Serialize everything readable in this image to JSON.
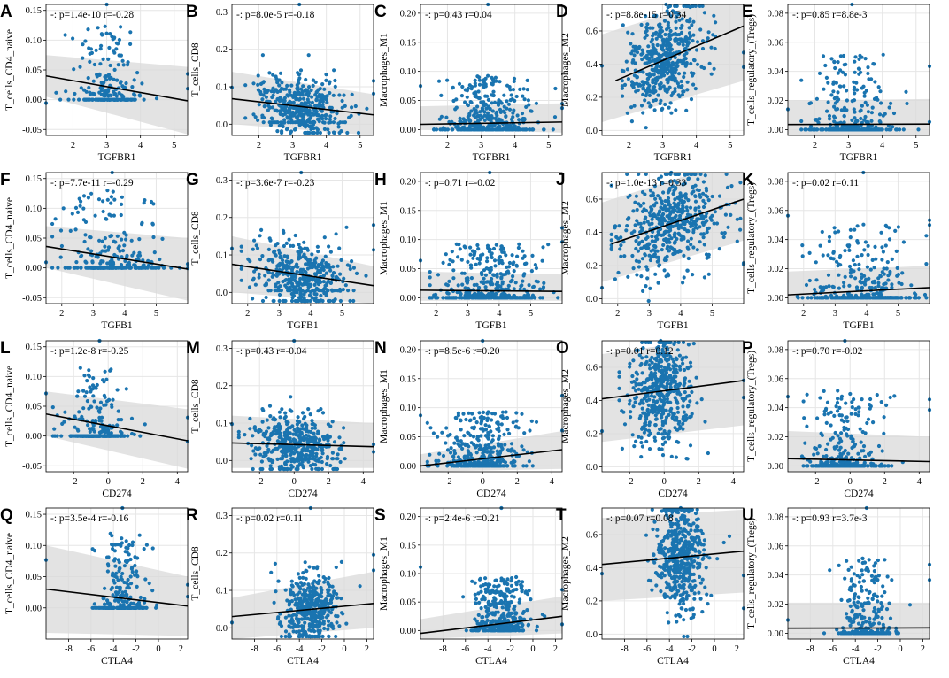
{
  "figure": {
    "title": "",
    "colors": {
      "point": "#1f77b4",
      "point_fill": "#1a74b0",
      "line": "#000000",
      "band": "#d9d9d9",
      "grid": "#e6e6e6"
    },
    "rows": [
      "TGFBR1",
      "TGFB1",
      "CD274",
      "CTLA4"
    ],
    "columns": [
      "T_cells_CD4_naive",
      "T_cells_CD8",
      "Macrophages_M1",
      "Macrophages_M2",
      "T_cells_regulatory_(Tregs)"
    ]
  },
  "chart_data": [
    {
      "panel": "A",
      "type": "scatter",
      "xlabel": "TGFBR1",
      "ylabel": "T_cells_CD4_naive",
      "stat": "-: p=1.4e-10 r=-0.28",
      "xticks": [
        "2",
        "3",
        "4",
        "5"
      ],
      "yticks": [
        "-0.05",
        "0.00",
        "0.05",
        "0.10",
        "0.15"
      ],
      "xlim": [
        1.2,
        5.4
      ],
      "ylim": [
        -0.06,
        0.16
      ],
      "fit": {
        "x": [
          1.2,
          5.4
        ],
        "y": [
          0.04,
          -0.002
        ]
      },
      "band": {
        "at_start": [
          0.005,
          0.075
        ],
        "at_end": [
          -0.058,
          0.055
        ]
      },
      "cloud": {
        "center": 3.0,
        "spread": 0.45,
        "range": [
          1.5,
          4.7
        ],
        "n": 230,
        "base": 0.0,
        "top": 0.13,
        "zero_frac": 0.5
      }
    },
    {
      "panel": "B",
      "type": "scatter",
      "xlabel": "TGFBR1",
      "ylabel": "T_cells_CD8",
      "stat": "-: p=8.0e-5 r=-0.18",
      "xticks": [
        "2",
        "3",
        "4",
        "5"
      ],
      "yticks": [
        "0.0",
        "0.1",
        "0.2",
        "0.3"
      ],
      "xlim": [
        1.2,
        5.4
      ],
      "ylim": [
        -0.03,
        0.32
      ],
      "fit": {
        "x": [
          1.2,
          5.4
        ],
        "y": [
          0.068,
          0.025
        ]
      },
      "band": {
        "at_start": [
          0.0,
          0.14
        ],
        "at_end": [
          -0.03,
          0.08
        ]
      },
      "cloud": {
        "center": 3.2,
        "spread": 0.65,
        "range": [
          1.6,
          5.2
        ],
        "n": 420,
        "base": 0.005,
        "top": 0.2,
        "zero_frac": 0.08
      }
    },
    {
      "panel": "C",
      "type": "scatter",
      "xlabel": "TGFBR1",
      "ylabel": "Macrophages_M1",
      "stat": "-: p=0.43 r=0.04",
      "xticks": [
        "2",
        "3",
        "4",
        "5"
      ],
      "yticks": [
        "0.00",
        "0.05",
        "0.10",
        "0.15",
        "0.20"
      ],
      "xlim": [
        1.2,
        5.4
      ],
      "ylim": [
        -0.01,
        0.215
      ],
      "fit": {
        "x": [
          1.2,
          5.4
        ],
        "y": [
          0.009,
          0.013
        ]
      },
      "band": {
        "at_start": [
          0.0,
          0.04
        ],
        "at_end": [
          -0.005,
          0.045
        ]
      },
      "cloud": {
        "center": 3.2,
        "spread": 0.65,
        "range": [
          1.6,
          5.2
        ],
        "n": 380,
        "base": 0.0,
        "top": 0.1,
        "zero_frac": 0.35
      }
    },
    {
      "panel": "D",
      "type": "scatter",
      "xlabel": "TGFBR1",
      "ylabel": "Macrophages_M2",
      "stat": "-: p=8.8e-15 r=0.34",
      "xticks": [
        "2",
        "3",
        "4",
        "5"
      ],
      "yticks": [
        "0.0",
        "0.2",
        "0.4",
        "0.6"
      ],
      "xlim": [
        1.2,
        5.4
      ],
      "ylim": [
        -0.03,
        0.76
      ],
      "fit": {
        "x": [
          1.6,
          5.4
        ],
        "y": [
          0.3,
          0.63
        ]
      },
      "band": {
        "at_start": [
          0.05,
          0.58
        ],
        "at_end": [
          0.3,
          0.85
        ]
      },
      "cloud": {
        "center": 3.1,
        "spread": 0.55,
        "range": [
          1.8,
          4.8
        ],
        "n": 480,
        "base": 0.05,
        "top": 0.75,
        "zero_frac": 0.0
      }
    },
    {
      "panel": "E",
      "type": "scatter",
      "xlabel": "TGFBR1",
      "ylabel": "T_cells_regulatory_(Tregs)",
      "stat": "-: p=0.85 r=8.8e-3",
      "xticks": [
        "2",
        "3",
        "4",
        "5"
      ],
      "yticks": [
        "0.00",
        "0.02",
        "0.04",
        "0.06",
        "0.08"
      ],
      "xlim": [
        1.2,
        5.4
      ],
      "ylim": [
        -0.004,
        0.086
      ],
      "fit": {
        "x": [
          1.2,
          5.4
        ],
        "y": [
          0.0035,
          0.0038
        ]
      },
      "band": {
        "at_start": [
          -0.004,
          0.02
        ],
        "at_end": [
          -0.004,
          0.021
        ]
      },
      "cloud": {
        "center": 3.1,
        "spread": 0.6,
        "range": [
          1.6,
          5.1
        ],
        "n": 330,
        "base": 0.0,
        "top": 0.056,
        "zero_frac": 0.45
      }
    },
    {
      "panel": "F",
      "type": "scatter",
      "xlabel": "TGFB1",
      "ylabel": "T_cells_CD4_naive",
      "stat": "-: p=7.7e-11 r=-0.29",
      "xticks": [
        "2",
        "3",
        "4",
        "5"
      ],
      "yticks": [
        "-0.05",
        "0.00",
        "0.05",
        "0.10",
        "0.15"
      ],
      "xlim": [
        1.5,
        6.0
      ],
      "ylim": [
        -0.06,
        0.16
      ],
      "fit": {
        "x": [
          1.5,
          6.0
        ],
        "y": [
          0.036,
          -0.002
        ]
      },
      "band": {
        "at_start": [
          0.0,
          0.07
        ],
        "at_end": [
          -0.055,
          0.05
        ]
      },
      "cloud": {
        "center": 3.6,
        "spread": 0.8,
        "range": [
          1.7,
          5.9
        ],
        "n": 250,
        "base": 0.0,
        "top": 0.14,
        "zero_frac": 0.45
      }
    },
    {
      "panel": "G",
      "type": "scatter",
      "xlabel": "TGFB1",
      "ylabel": "T_cells_CD8",
      "stat": "-: p=3.6e-7 r=-0.23",
      "xticks": [
        "2",
        "3",
        "4",
        "5"
      ],
      "yticks": [
        "0.0",
        "0.1",
        "0.2",
        "0.3"
      ],
      "xlim": [
        1.5,
        6.0
      ],
      "ylim": [
        -0.03,
        0.32
      ],
      "fit": {
        "x": [
          1.5,
          6.0
        ],
        "y": [
          0.075,
          0.018
        ]
      },
      "band": {
        "at_start": [
          0.0,
          0.15
        ],
        "at_end": [
          -0.03,
          0.07
        ]
      },
      "cloud": {
        "center": 3.7,
        "spread": 0.8,
        "range": [
          1.8,
          5.9
        ],
        "n": 420,
        "base": 0.005,
        "top": 0.22,
        "zero_frac": 0.06
      }
    },
    {
      "panel": "H",
      "type": "scatter",
      "xlabel": "TGFB1",
      "ylabel": "Macrophages_M1",
      "stat": "-: p=0.71 r=-0.02",
      "xticks": [
        "2",
        "3",
        "4",
        "5"
      ],
      "yticks": [
        "0.00",
        "0.05",
        "0.10",
        "0.15",
        "0.20"
      ],
      "xlim": [
        1.5,
        6.0
      ],
      "ylim": [
        -0.01,
        0.215
      ],
      "fit": {
        "x": [
          1.5,
          6.0
        ],
        "y": [
          0.013,
          0.011
        ]
      },
      "band": {
        "at_start": [
          -0.005,
          0.045
        ],
        "at_end": [
          -0.005,
          0.04
        ]
      },
      "cloud": {
        "center": 3.7,
        "spread": 0.8,
        "range": [
          1.8,
          5.9
        ],
        "n": 380,
        "base": 0.0,
        "top": 0.1,
        "zero_frac": 0.35
      }
    },
    {
      "panel": "J",
      "type": "scatter",
      "xlabel": "TGFB1",
      "ylabel": "Macrophages_M2",
      "stat": "-: p=1.0e-13 r=0.33",
      "xticks": [
        "2",
        "3",
        "4",
        "5"
      ],
      "yticks": [
        "0.0",
        "0.2",
        "0.4",
        "0.6"
      ],
      "xlim": [
        1.5,
        6.0
      ],
      "ylim": [
        -0.03,
        0.76
      ],
      "fit": {
        "x": [
          1.8,
          6.0
        ],
        "y": [
          0.33,
          0.6
        ]
      },
      "band": {
        "at_start": [
          0.1,
          0.58
        ],
        "at_end": [
          0.35,
          0.85
        ]
      },
      "cloud": {
        "center": 3.7,
        "spread": 0.8,
        "range": [
          1.8,
          5.9
        ],
        "n": 480,
        "base": 0.05,
        "top": 0.75,
        "zero_frac": 0.0
      }
    },
    {
      "panel": "K",
      "type": "scatter",
      "xlabel": "TGFB1",
      "ylabel": "T_cells_regulatory_(Tregs)",
      "stat": "-: p=0.02 r=0.11",
      "xticks": [
        "2",
        "3",
        "4",
        "5"
      ],
      "yticks": [
        "0.00",
        "0.02",
        "0.04",
        "0.06",
        "0.08"
      ],
      "xlim": [
        1.5,
        6.0
      ],
      "ylim": [
        -0.004,
        0.086
      ],
      "fit": {
        "x": [
          1.5,
          6.0
        ],
        "y": [
          0.002,
          0.007
        ]
      },
      "band": {
        "at_start": [
          -0.004,
          0.018
        ],
        "at_end": [
          -0.004,
          0.022
        ]
      },
      "cloud": {
        "center": 3.9,
        "spread": 0.8,
        "range": [
          1.8,
          5.9
        ],
        "n": 330,
        "base": 0.0,
        "top": 0.055,
        "zero_frac": 0.45
      }
    },
    {
      "panel": "L",
      "type": "scatter",
      "xlabel": "CD274",
      "ylabel": "T_cells_CD4_naive",
      "stat": "-: p=1.2e-8 r=-0.25",
      "xticks": [
        "-2",
        "0",
        "2",
        "4"
      ],
      "yticks": [
        "-0.05",
        "0.00",
        "0.05",
        "0.10",
        "0.15"
      ],
      "xlim": [
        -3.6,
        4.6
      ],
      "ylim": [
        -0.06,
        0.16
      ],
      "fit": {
        "x": [
          -3.6,
          4.6
        ],
        "y": [
          0.037,
          -0.008
        ]
      },
      "band": {
        "at_start": [
          0.0,
          0.075
        ],
        "at_end": [
          -0.055,
          0.045
        ]
      },
      "cloud": {
        "center": -0.5,
        "spread": 0.9,
        "range": [
          -3.2,
          4.4
        ],
        "n": 250,
        "base": 0.0,
        "top": 0.12,
        "zero_frac": 0.5
      }
    },
    {
      "panel": "M",
      "type": "scatter",
      "xlabel": "CD274",
      "ylabel": "T_cells_CD8",
      "stat": "-: p=0.43 r=-0.04",
      "xticks": [
        "-2",
        "0",
        "2",
        "4"
      ],
      "yticks": [
        "0.0",
        "0.1",
        "0.2",
        "0.3"
      ],
      "xlim": [
        -3.6,
        4.6
      ],
      "ylim": [
        -0.03,
        0.32
      ],
      "fit": {
        "x": [
          -3.6,
          4.6
        ],
        "y": [
          0.047,
          0.037
        ]
      },
      "band": {
        "at_start": [
          -0.02,
          0.12
        ],
        "at_end": [
          -0.02,
          0.1
        ]
      },
      "cloud": {
        "center": 0.0,
        "spread": 1.3,
        "range": [
          -3.2,
          4.4
        ],
        "n": 420,
        "base": 0.005,
        "top": 0.2,
        "zero_frac": 0.06
      }
    },
    {
      "panel": "N",
      "type": "scatter",
      "xlabel": "CD274",
      "ylabel": "Macrophages_M1",
      "stat": "-: p=8.5e-6 r=0.20",
      "xticks": [
        "-2",
        "0",
        "2",
        "4"
      ],
      "yticks": [
        "0.00",
        "0.05",
        "0.10",
        "0.15",
        "0.20"
      ],
      "xlim": [
        -3.6,
        4.6
      ],
      "ylim": [
        -0.01,
        0.215
      ],
      "fit": {
        "x": [
          -3.6,
          4.6
        ],
        "y": [
          0.0,
          0.028
        ]
      },
      "band": {
        "at_start": [
          -0.01,
          0.02
        ],
        "at_end": [
          -0.005,
          0.06
        ]
      },
      "cloud": {
        "center": 0.0,
        "spread": 1.3,
        "range": [
          -3.2,
          4.4
        ],
        "n": 380,
        "base": 0.0,
        "top": 0.1,
        "zero_frac": 0.3
      }
    },
    {
      "panel": "O",
      "type": "scatter",
      "xlabel": "CD274",
      "ylabel": "Macrophages_M2",
      "stat": "-: p=0.01 r=0.12",
      "xticks": [
        "-2",
        "0",
        "2",
        "4"
      ],
      "yticks": [
        "0.0",
        "0.2",
        "0.4",
        "0.6"
      ],
      "xlim": [
        -3.6,
        4.6
      ],
      "ylim": [
        -0.03,
        0.76
      ],
      "fit": {
        "x": [
          -3.6,
          4.6
        ],
        "y": [
          0.41,
          0.52
        ]
      },
      "band": {
        "at_start": [
          0.15,
          0.68
        ],
        "at_end": [
          0.25,
          0.8
        ]
      },
      "cloud": {
        "center": -0.2,
        "spread": 0.9,
        "range": [
          -2.6,
          4.2
        ],
        "n": 480,
        "base": 0.0,
        "top": 0.75,
        "zero_frac": 0.0
      }
    },
    {
      "panel": "P",
      "type": "scatter",
      "xlabel": "CD274",
      "ylabel": "T_cells_regulatory_(Tregs)",
      "stat": "-: p=0.70 r=-0.02",
      "xticks": [
        "-2",
        "0",
        "2",
        "4"
      ],
      "yticks": [
        "0.00",
        "0.02",
        "0.04",
        "0.06",
        "0.08"
      ],
      "xlim": [
        -3.6,
        4.6
      ],
      "ylim": [
        -0.004,
        0.086
      ],
      "fit": {
        "x": [
          -3.6,
          4.6
        ],
        "y": [
          0.005,
          0.003
        ]
      },
      "band": {
        "at_start": [
          -0.004,
          0.024
        ],
        "at_end": [
          -0.004,
          0.02
        ]
      },
      "cloud": {
        "center": -0.3,
        "spread": 1.1,
        "range": [
          -3.2,
          4.4
        ],
        "n": 330,
        "base": 0.0,
        "top": 0.056,
        "zero_frac": 0.45
      }
    },
    {
      "panel": "Q",
      "type": "scatter",
      "xlabel": "CTLA4",
      "ylabel": "T_cells_CD4_naive",
      "stat": "-: p=3.5e-4 r=-0.16",
      "xticks": [
        "-8",
        "-6",
        "-4",
        "-2",
        "0",
        "2"
      ],
      "yticks": [
        "0.00",
        "0.05",
        "0.10",
        "0.15"
      ],
      "xlim": [
        -10,
        2.6
      ],
      "ylim": [
        -0.05,
        0.16
      ],
      "fit": {
        "x": [
          -10,
          2.6
        ],
        "y": [
          0.03,
          0.003
        ]
      },
      "band": {
        "at_start": [
          -0.04,
          0.1
        ],
        "at_end": [
          -0.045,
          0.05
        ]
      },
      "cloud": {
        "center": -3.2,
        "spread": 1.1,
        "range": [
          -9.5,
          2.3
        ],
        "n": 250,
        "base": 0.0,
        "top": 0.13,
        "zero_frac": 0.45
      }
    },
    {
      "panel": "R",
      "type": "scatter",
      "xlabel": "CTLA4",
      "ylabel": "T_cells_CD8",
      "stat": "-: p=0.02 r=0.11",
      "xticks": [
        "-8",
        "-6",
        "-4",
        "-2",
        "0",
        "2"
      ],
      "yticks": [
        "0.0",
        "0.1",
        "0.2",
        "0.3"
      ],
      "xlim": [
        -10,
        2.6
      ],
      "ylim": [
        -0.03,
        0.32
      ],
      "fit": {
        "x": [
          -10,
          2.6
        ],
        "y": [
          0.03,
          0.065
        ]
      },
      "band": {
        "at_start": [
          -0.03,
          0.08
        ],
        "at_end": [
          0.0,
          0.15
        ]
      },
      "cloud": {
        "center": -3.0,
        "spread": 1.2,
        "range": [
          -9.5,
          2.3
        ],
        "n": 420,
        "base": 0.005,
        "top": 0.23,
        "zero_frac": 0.05
      }
    },
    {
      "panel": "S",
      "type": "scatter",
      "xlabel": "CTLA4",
      "ylabel": "Macrophages_M1",
      "stat": "-: p=2.4e-6 r=0.21",
      "xticks": [
        "-8",
        "-6",
        "-4",
        "-2",
        "0",
        "2"
      ],
      "yticks": [
        "0.00",
        "0.05",
        "0.10",
        "0.15",
        "0.20"
      ],
      "xlim": [
        -10,
        2.6
      ],
      "ylim": [
        -0.015,
        0.215
      ],
      "fit": {
        "x": [
          -10,
          2.6
        ],
        "y": [
          -0.005,
          0.025
        ]
      },
      "band": {
        "at_start": [
          -0.015,
          0.02
        ],
        "at_end": [
          -0.005,
          0.06
        ]
      },
      "cloud": {
        "center": -2.8,
        "spread": 1.2,
        "range": [
          -8.5,
          2.3
        ],
        "n": 380,
        "base": 0.0,
        "top": 0.1,
        "zero_frac": 0.25
      }
    },
    {
      "panel": "T",
      "type": "scatter",
      "xlabel": "CTLA4",
      "ylabel": "Macrophages_M2",
      "stat": "-: p=0.07 r=0.08",
      "xticks": [
        "-8",
        "-6",
        "-4",
        "-2",
        "0",
        "2"
      ],
      "yticks": [
        "0.0",
        "0.2",
        "0.4",
        "0.6"
      ],
      "xlim": [
        -10,
        2.6
      ],
      "ylim": [
        -0.03,
        0.76
      ],
      "fit": {
        "x": [
          -10,
          2.6
        ],
        "y": [
          0.42,
          0.5
        ]
      },
      "band": {
        "at_start": [
          0.2,
          0.7
        ],
        "at_end": [
          0.25,
          0.75
        ]
      },
      "cloud": {
        "center": -3.0,
        "spread": 1.1,
        "range": [
          -9.5,
          2.3
        ],
        "n": 480,
        "base": 0.0,
        "top": 0.75,
        "zero_frac": 0.0
      }
    },
    {
      "panel": "U",
      "type": "scatter",
      "xlabel": "CTLA4",
      "ylabel": "T_cells_regulatory_(Tregs)",
      "stat": "-: p=0.93 r=3.7e-3",
      "xticks": [
        "-8",
        "-6",
        "-4",
        "-2",
        "0",
        "2"
      ],
      "yticks": [
        "0.00",
        "0.02",
        "0.04",
        "0.06",
        "0.08"
      ],
      "xlim": [
        -10,
        2.6
      ],
      "ylim": [
        -0.004,
        0.086
      ],
      "fit": {
        "x": [
          -10,
          2.6
        ],
        "y": [
          0.0035,
          0.0037
        ]
      },
      "band": {
        "at_start": [
          -0.004,
          0.021
        ],
        "at_end": [
          -0.004,
          0.021
        ]
      },
      "cloud": {
        "center": -3.0,
        "spread": 1.1,
        "range": [
          -9.5,
          2.3
        ],
        "n": 330,
        "base": 0.0,
        "top": 0.056,
        "zero_frac": 0.45
      }
    }
  ]
}
